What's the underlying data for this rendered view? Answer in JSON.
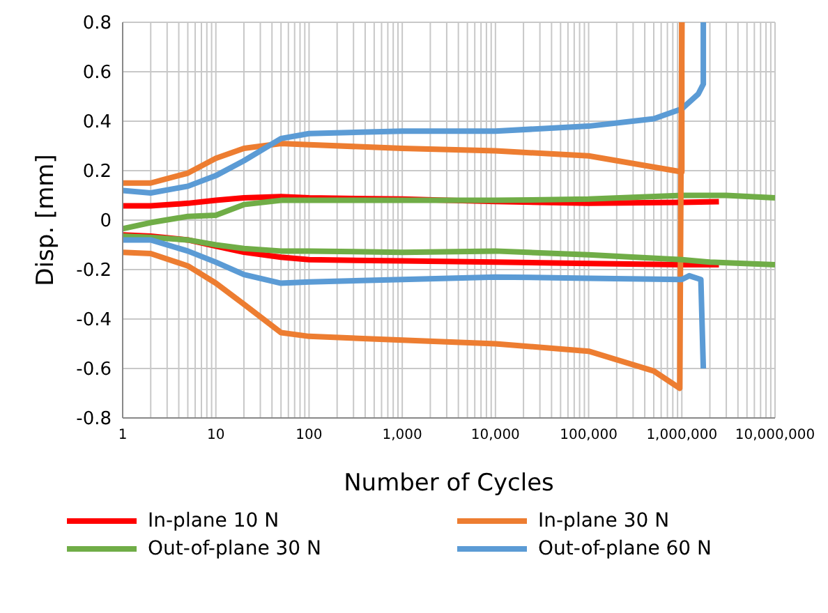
{
  "chart_data": {
    "type": "line",
    "xlabel": "Number of Cycles",
    "ylabel": "Disp. [mm]",
    "log": "x",
    "grid": true,
    "legend": "bottom",
    "marker": "none",
    "xlim": [
      1,
      10000000
    ],
    "xticks": [
      1,
      10,
      100,
      {
        "value": 1000,
        "label": "1,000"
      },
      {
        "value": 10000,
        "label": "10,000"
      },
      {
        "value": 100000,
        "label": "100,000"
      },
      {
        "value": 1000000,
        "label": "1,000,000"
      },
      {
        "value": 10000000,
        "label": "10,000,000"
      }
    ],
    "ylim": [
      -0.8,
      0.8
    ],
    "yticks": [
      -0.8,
      -0.6,
      -0.4,
      -0.2,
      0,
      0.2,
      0.4,
      0.6,
      0.8
    ],
    "series": [
      {
        "name": "In-plane 10 N",
        "color": "#ff0000",
        "x": [
          1,
          2,
          5,
          10,
          20,
          50,
          100,
          1000,
          10000,
          100000,
          1000000,
          2500000
        ],
        "values": [
          0.058,
          0.058,
          0.068,
          0.08,
          0.09,
          0.095,
          0.09,
          0.085,
          0.075,
          0.068,
          0.072,
          0.075
        ]
      },
      {
        "name": "In-plane 30 N",
        "color": "#ed7d31",
        "x": [
          1,
          2,
          5,
          10,
          20,
          50,
          100,
          1000,
          10000,
          100000,
          1000000,
          1000001
        ],
        "values": [
          0.15,
          0.15,
          0.19,
          0.25,
          0.29,
          0.31,
          0.305,
          0.29,
          0.28,
          0.26,
          0.195,
          0.8
        ]
      },
      {
        "name": "Out-of-plane 30 N",
        "color": "#70ad47",
        "x": [
          1,
          2,
          5,
          10,
          20,
          50,
          100,
          1000,
          10000,
          100000,
          1000000,
          3000000,
          10000000
        ],
        "values": [
          -0.035,
          -0.01,
          0.015,
          0.02,
          0.063,
          0.08,
          0.08,
          0.08,
          0.08,
          0.085,
          0.1,
          0.1,
          0.09
        ]
      },
      {
        "name": "Out-of-plane 60 N",
        "color": "#5b9bd5",
        "x": [
          1,
          2,
          5,
          10,
          20,
          50,
          100,
          1000,
          10000,
          100000,
          500000,
          1000000,
          1500000,
          1700000,
          1700001
        ],
        "values": [
          0.12,
          0.11,
          0.137,
          0.18,
          0.24,
          0.33,
          0.35,
          0.36,
          0.36,
          0.38,
          0.41,
          0.45,
          0.51,
          0.55,
          0.8
        ]
      },
      {
        "color": "#ff0000",
        "x": [
          1,
          2,
          5,
          10,
          20,
          50,
          100,
          1000,
          10000,
          100000,
          1000000,
          2500000
        ],
        "values": [
          -0.06,
          -0.065,
          -0.08,
          -0.105,
          -0.13,
          -0.15,
          -0.16,
          -0.165,
          -0.17,
          -0.175,
          -0.18,
          -0.18
        ]
      },
      {
        "color": "#ed7d31",
        "x": [
          1,
          2,
          5,
          10,
          20,
          50,
          100,
          1000,
          10000,
          100000,
          500000,
          950000,
          1000000
        ],
        "values": [
          -0.13,
          -0.135,
          -0.185,
          -0.255,
          -0.34,
          -0.455,
          -0.47,
          -0.485,
          -0.5,
          -0.53,
          -0.61,
          -0.68,
          0.8
        ]
      },
      {
        "color": "#70ad47",
        "x": [
          1,
          2,
          5,
          10,
          20,
          50,
          100,
          1000,
          10000,
          100000,
          1000000,
          2000000,
          10000000
        ],
        "values": [
          -0.065,
          -0.07,
          -0.08,
          -0.1,
          -0.115,
          -0.125,
          -0.125,
          -0.13,
          -0.125,
          -0.14,
          -0.16,
          -0.17,
          -0.18
        ]
      },
      {
        "color": "#5b9bd5",
        "x": [
          1,
          2,
          5,
          10,
          20,
          50,
          100,
          1000,
          10000,
          100000,
          1000000,
          1200000,
          1600000,
          1700000
        ],
        "values": [
          -0.08,
          -0.08,
          -0.125,
          -0.17,
          -0.22,
          -0.255,
          -0.25,
          -0.24,
          -0.23,
          -0.235,
          -0.24,
          -0.225,
          -0.24,
          -0.6
        ]
      }
    ]
  }
}
